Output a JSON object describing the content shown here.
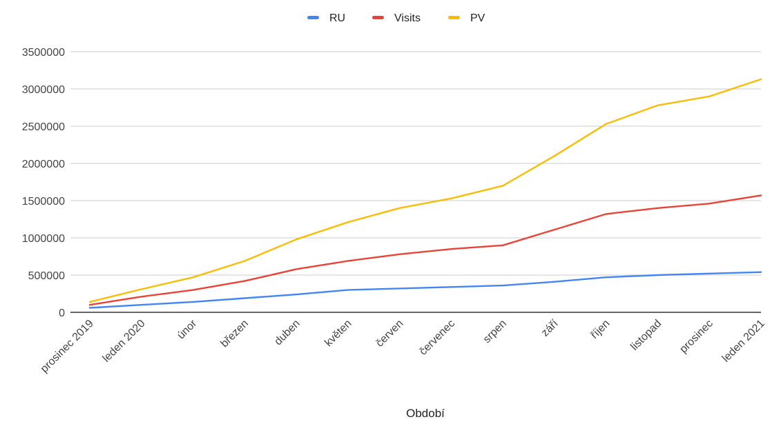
{
  "chart_data": {
    "type": "line",
    "title": "",
    "xlabel": "Období",
    "ylabel": "",
    "categories": [
      "prosinec 2019",
      "leden 2020",
      "únor",
      "březen",
      "duben",
      "květen",
      "červen",
      "červenec",
      "srpen",
      "září",
      "říjen",
      "listopad",
      "prosinec",
      "leden 2021"
    ],
    "ylim": [
      0,
      3500000
    ],
    "yticks": [
      "0",
      "500000",
      "1000000",
      "1500000",
      "2000000",
      "2500000",
      "3000000",
      "3500000"
    ],
    "grid": true,
    "legend_position": "top-center",
    "series": [
      {
        "name": "RU",
        "color": "#4285f4",
        "values": [
          60000,
          100000,
          140000,
          190000,
          240000,
          300000,
          320000,
          340000,
          360000,
          410000,
          470000,
          500000,
          520000,
          540000
        ]
      },
      {
        "name": "Visits",
        "color": "#ea4335",
        "values": [
          100000,
          210000,
          300000,
          420000,
          580000,
          690000,
          780000,
          850000,
          900000,
          1110000,
          1320000,
          1400000,
          1460000,
          1570000
        ]
      },
      {
        "name": "PV",
        "color": "#fbbc04",
        "values": [
          140000,
          310000,
          470000,
          690000,
          980000,
          1210000,
          1400000,
          1530000,
          1700000,
          2100000,
          2530000,
          2780000,
          2900000,
          3130000
        ]
      }
    ]
  }
}
